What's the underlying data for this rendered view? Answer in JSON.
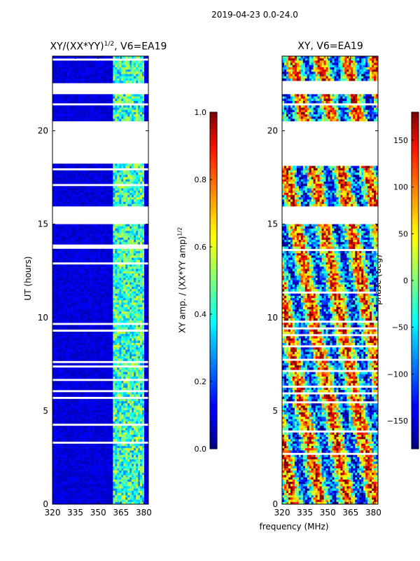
{
  "page": {
    "super_title": "2019-04-23 0.0-24.0",
    "xlabel_shared": "frequency (MHz)"
  },
  "chart_data": [
    {
      "type": "heatmap",
      "name": "amplitude",
      "title_main": "XY/(XX*YY)",
      "title_sup": "1/2",
      "title_rest": ", V6=EA19",
      "xlabel": "frequency (MHz)",
      "ylabel": "UT (hours)",
      "x_ticks": [
        320,
        335,
        350,
        365,
        380
      ],
      "xlim": [
        320,
        383
      ],
      "y_ticks": [
        0,
        5,
        10,
        15,
        20
      ],
      "ylim": [
        0,
        24
      ],
      "colormap": "jet",
      "colorbar": {
        "label_main": "XY amp. / (XX*YY amp)",
        "label_sup": "1/2",
        "ticks": [
          "0.0",
          "0.2",
          "0.4",
          "0.6",
          "0.8",
          "1.0"
        ],
        "tick_values": [
          0.0,
          0.2,
          0.4,
          0.6,
          0.8,
          1.0
        ],
        "range": [
          0.0,
          1.0
        ]
      },
      "blank_hours": [
        [
          18.3,
          20.5
        ],
        [
          15.0,
          16.0
        ],
        [
          22.0,
          22.6
        ]
      ],
      "bright_band_mhz": [
        360,
        380
      ]
    },
    {
      "type": "heatmap",
      "name": "phase",
      "title_main": "XY, V6=EA19",
      "title_sup": "",
      "title_rest": "",
      "xlabel": "frequency (MHz)",
      "ylabel": "",
      "x_ticks": [
        320,
        335,
        350,
        365,
        380
      ],
      "xlim": [
        320,
        383
      ],
      "y_ticks": [
        0,
        5,
        10,
        15,
        20
      ],
      "ylim": [
        0,
        24
      ],
      "colormap": "jet",
      "colorbar": {
        "label_main": "phase (deg)",
        "label_sup": "",
        "ticks": [
          "150",
          "100",
          "50",
          "0",
          "−50",
          "−100",
          "−150"
        ],
        "tick_values": [
          150,
          100,
          50,
          0,
          -50,
          -100,
          -150
        ],
        "range": [
          -180,
          180
        ]
      },
      "blank_hours": [
        [
          18.3,
          20.5
        ],
        [
          15.0,
          16.0
        ],
        [
          22.0,
          22.6
        ]
      ]
    }
  ]
}
